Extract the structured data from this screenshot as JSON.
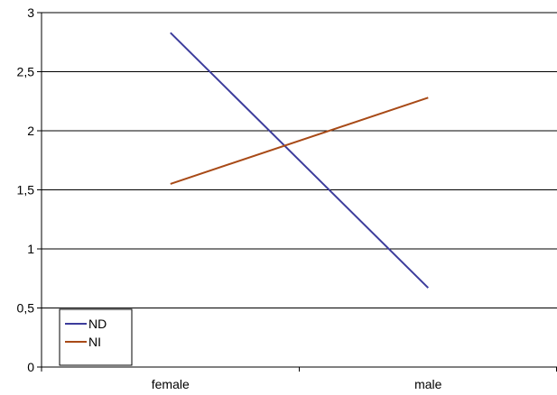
{
  "chart_data": {
    "type": "line",
    "title": "",
    "xlabel": "",
    "ylabel": "",
    "categories": [
      "female",
      "male"
    ],
    "y_ticks": [
      "0",
      "0,5",
      "1",
      "1,5",
      "2",
      "2,5",
      "3"
    ],
    "ylim": [
      0,
      3
    ],
    "grid": true,
    "legend_position": "bottom-left",
    "series": [
      {
        "name": "ND",
        "values": [
          2.83,
          0.67
        ],
        "color": "#3c3c9c"
      },
      {
        "name": "NI",
        "values": [
          1.55,
          2.28
        ],
        "color": "#a84a17"
      }
    ]
  }
}
